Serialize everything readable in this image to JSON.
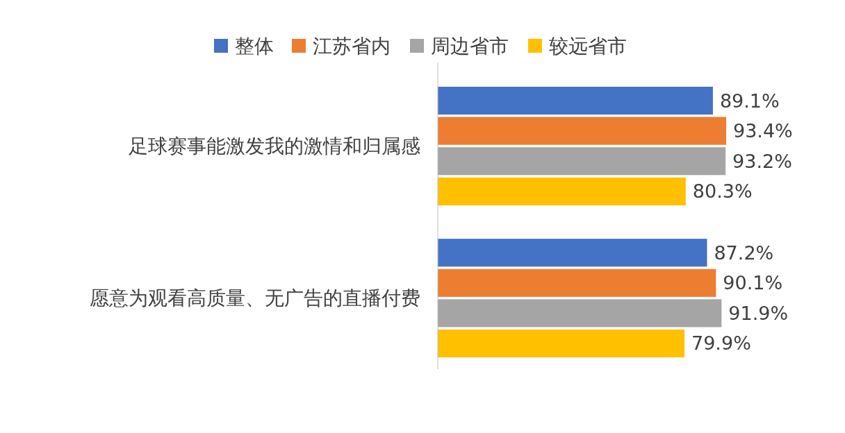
{
  "chart_data": {
    "type": "bar",
    "orientation": "horizontal",
    "legend": "top",
    "categories": [
      "足球赛事能激发我的激情和归属感",
      "愿意为观看高质量、无广告的直播付费"
    ],
    "series": [
      {
        "name": "整体",
        "color": "#4472c4",
        "values": [
          89.1,
          87.2
        ],
        "value_labels": [
          "89.1%",
          "87.2%"
        ]
      },
      {
        "name": "江苏省内",
        "color": "#ed7d31",
        "values": [
          93.4,
          90.1
        ],
        "value_labels": [
          "93.4%",
          "90.1%"
        ]
      },
      {
        "name": "周边省市",
        "color": "#a5a5a5",
        "values": [
          93.2,
          91.9
        ],
        "value_labels": [
          "93.2%",
          "91.9%"
        ]
      },
      {
        "name": "较远省市",
        "color": "#ffc000",
        "values": [
          80.3,
          79.9
        ],
        "value_labels": [
          "80.3%",
          "79.9%"
        ]
      }
    ]
  }
}
